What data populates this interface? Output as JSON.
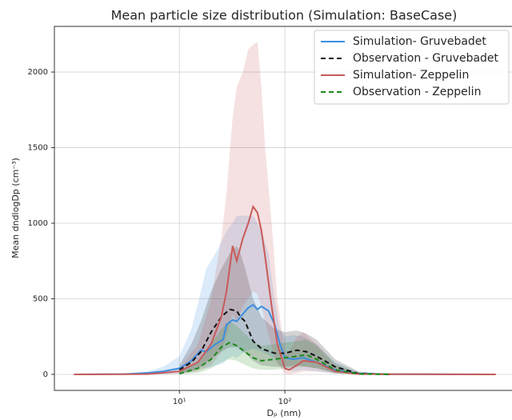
{
  "chart_data": {
    "type": "line",
    "title": "Mean particle size distribution (Simulation: BaseCase)",
    "x_label": "Dₚ (nm)",
    "y_label": "Mean dndlogDp (cm⁻³)",
    "xscale": "log",
    "xlim": [
      0.653,
      16400
    ],
    "ylim": [
      -106,
      2302
    ],
    "xticks": [
      {
        "value": 10,
        "label": "10¹"
      },
      {
        "value": 100,
        "label": "10²"
      }
    ],
    "yticks": [
      0,
      500,
      1000,
      1500,
      2000
    ],
    "grid": true,
    "legend": "upper right",
    "series": [
      {
        "name": "Simulation- Gruvebadet",
        "color": "#3b8ee0",
        "dashed": false,
        "x": [
          1,
          3,
          5,
          7,
          10,
          13,
          16,
          18,
          22,
          26,
          28,
          32,
          35,
          40,
          45,
          50,
          55,
          60,
          70,
          80,
          90,
          100,
          120,
          150,
          200,
          300,
          500,
          1000,
          10000
        ],
        "values": [
          0,
          2,
          10,
          20,
          40,
          90,
          160,
          150,
          200,
          230,
          330,
          360,
          350,
          400,
          440,
          460,
          430,
          450,
          420,
          330,
          200,
          110,
          100,
          110,
          80,
          30,
          5,
          1,
          0
        ],
        "upper": [
          0,
          5,
          20,
          50,
          120,
          300,
          550,
          700,
          800,
          900,
          950,
          1000,
          1050,
          1050,
          1050,
          1050,
          1000,
          950,
          800,
          500,
          300,
          250,
          260,
          250,
          200,
          80,
          15,
          3,
          0
        ],
        "lower": [
          0,
          0,
          0,
          0,
          5,
          20,
          40,
          40,
          60,
          70,
          100,
          120,
          110,
          140,
          160,
          170,
          160,
          150,
          130,
          100,
          60,
          30,
          20,
          30,
          20,
          5,
          0,
          0,
          0
        ]
      },
      {
        "name": "Observation - Gruvebadet",
        "color": "#111111",
        "dashed": true,
        "x": [
          10,
          13,
          16,
          20,
          25,
          30,
          35,
          38,
          42,
          50,
          60,
          80,
          100,
          130,
          160,
          200,
          300,
          500,
          1000
        ],
        "values": [
          30,
          80,
          150,
          280,
          380,
          430,
          420,
          380,
          350,
          220,
          170,
          140,
          140,
          160,
          150,
          120,
          50,
          5,
          0
        ],
        "upper": [
          60,
          200,
          350,
          550,
          700,
          800,
          850,
          800,
          700,
          500,
          380,
          300,
          280,
          290,
          270,
          230,
          100,
          20,
          0
        ],
        "lower": [
          5,
          20,
          50,
          100,
          150,
          180,
          180,
          160,
          140,
          90,
          60,
          50,
          50,
          60,
          50,
          40,
          10,
          0,
          0
        ]
      },
      {
        "name": "Simulation- Zeppelin",
        "color": "#c85a5a",
        "dashed": false,
        "x": [
          1,
          5,
          10,
          15,
          20,
          25,
          28,
          32,
          35,
          40,
          45,
          50,
          55,
          60,
          65,
          75,
          85,
          100,
          110,
          130,
          150,
          200,
          300,
          500,
          10000
        ],
        "values": [
          0,
          2,
          20,
          80,
          200,
          380,
          550,
          850,
          750,
          900,
          1000,
          1110,
          1070,
          950,
          780,
          450,
          200,
          40,
          30,
          60,
          90,
          80,
          20,
          2,
          0
        ],
        "upper": [
          0,
          5,
          40,
          200,
          500,
          900,
          1200,
          1700,
          1900,
          2000,
          2150,
          2180,
          2200,
          1900,
          1500,
          1000,
          500,
          150,
          150,
          250,
          280,
          200,
          60,
          5,
          0
        ],
        "lower": [
          0,
          0,
          5,
          20,
          60,
          150,
          250,
          400,
          350,
          450,
          500,
          550,
          530,
          450,
          350,
          180,
          70,
          5,
          0,
          10,
          20,
          20,
          5,
          0,
          0
        ]
      },
      {
        "name": "Observation - Zeppelin",
        "color": "#1a8a1a",
        "dashed": true,
        "x": [
          10,
          15,
          20,
          25,
          30,
          35,
          40,
          50,
          60,
          80,
          100,
          130,
          160,
          200,
          300,
          500,
          1000
        ],
        "values": [
          5,
          40,
          100,
          180,
          210,
          190,
          160,
          110,
          90,
          100,
          110,
          120,
          130,
          100,
          30,
          3,
          0
        ],
        "upper": [
          15,
          80,
          200,
          300,
          350,
          320,
          280,
          220,
          190,
          200,
          210,
          220,
          230,
          190,
          70,
          10,
          0
        ],
        "lower": [
          0,
          10,
          40,
          80,
          100,
          90,
          70,
          40,
          30,
          30,
          40,
          50,
          50,
          40,
          10,
          0,
          0
        ]
      }
    ]
  }
}
